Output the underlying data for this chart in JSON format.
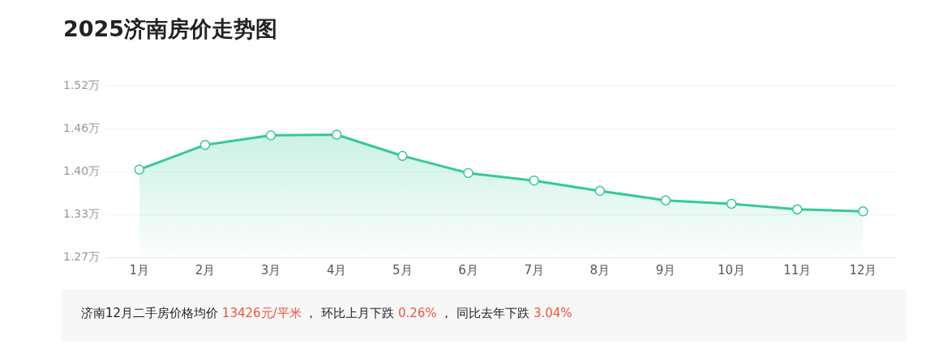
{
  "chart_data": {
    "type": "area",
    "title": "2025济南房价走势图",
    "categories": [
      "1月",
      "2月",
      "3月",
      "4月",
      "5月",
      "6月",
      "7月",
      "8月",
      "9月",
      "10月",
      "11月",
      "12月"
    ],
    "series": [
      {
        "color": "#36c994",
        "values": [
          1.398,
          1.434,
          1.448,
          1.449,
          1.418,
          1.393,
          1.382,
          1.367,
          1.353,
          1.348,
          1.34,
          1.337
        ]
      }
    ],
    "ylim": [
      1.27,
      1.52
    ],
    "yticks": [
      {
        "value": 1.27,
        "label": "1.27万"
      },
      {
        "value": 1.3325,
        "label": "1.33万"
      },
      {
        "value": 1.395,
        "label": "1.40万"
      },
      {
        "value": 1.4575,
        "label": "1.46万"
      },
      {
        "value": 1.52,
        "label": "1.52万"
      }
    ],
    "grid": "y",
    "marker": "circle",
    "legend": false,
    "annotations": [
      "济南12月二手房价格均价 13426元/平米 ， 环比上月下跌 0.26% ， 同比去年下跌 3.04%"
    ]
  }
}
